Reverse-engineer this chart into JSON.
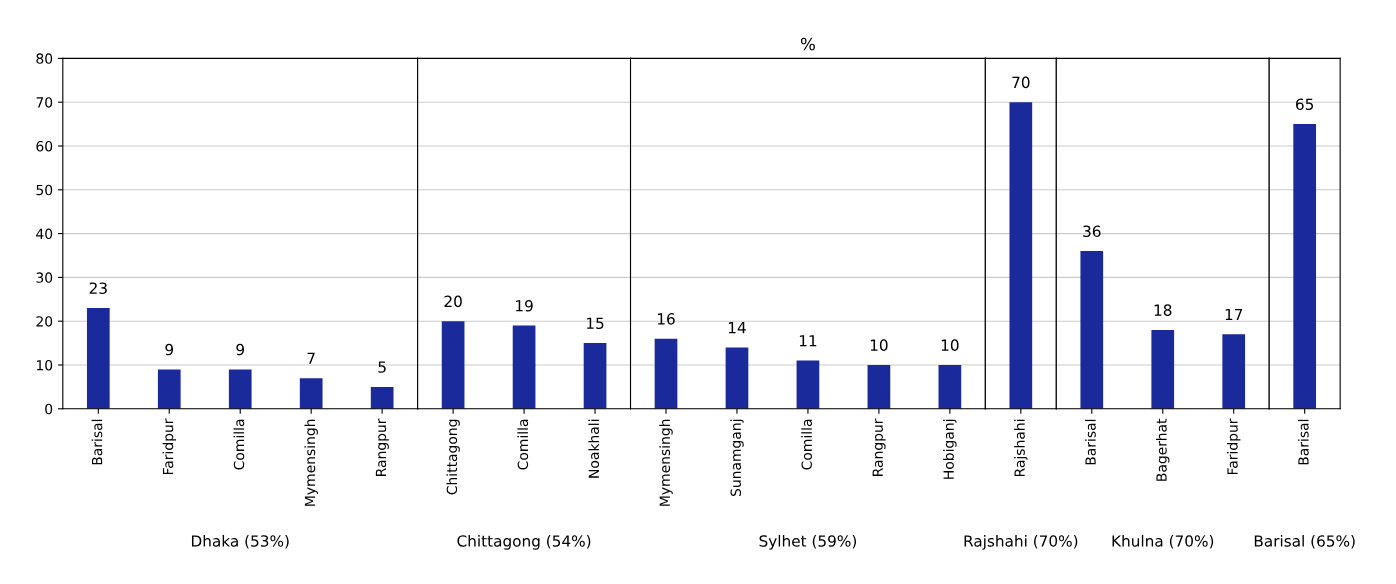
{
  "chart_data": [
    {
      "type": "bar",
      "xlabel": "Dhaka (53%)",
      "categories": [
        "Barisal",
        "Faridpur",
        "Comilla",
        "Mymensingh",
        "Rangpur"
      ],
      "values": [
        23,
        9,
        9,
        7,
        5
      ],
      "color": "#1a2a9a",
      "ylim": [
        0,
        80
      ],
      "yticks": [
        0,
        10,
        20,
        30,
        40,
        50,
        60,
        70,
        80
      ],
      "grid": "y",
      "data_labels": true
    },
    {
      "type": "bar",
      "xlabel": "Chittagong (54%)",
      "categories": [
        "Chittagong",
        "Comilla",
        "Noakhali"
      ],
      "values": [
        20,
        19,
        15
      ],
      "color": "#1a2a9a",
      "ylim": [
        0,
        80
      ],
      "yticks": [
        0,
        10,
        20,
        30,
        40,
        50,
        60,
        70,
        80
      ],
      "grid": "y",
      "data_labels": true,
      "tick_labels": "x"
    },
    {
      "type": "bar",
      "title": "%",
      "xlabel": "Sylhet (59%)",
      "categories": [
        "Mymensingh",
        "Sunamganj",
        "Comilla",
        "Rangpur",
        "Hobiganj"
      ],
      "values": [
        16,
        14,
        11,
        10,
        10
      ],
      "color": "#1a2a9a",
      "ylim": [
        0,
        80
      ],
      "yticks": [
        0,
        10,
        20,
        30,
        40,
        50,
        60,
        70,
        80
      ],
      "grid": "y",
      "data_labels": true,
      "tick_labels": "x"
    },
    {
      "type": "bar",
      "xlabel": "Rajshahi (70%)",
      "categories": [
        "Rajshahi"
      ],
      "values": [
        70
      ],
      "color": "#1a2a9a",
      "ylim": [
        0,
        80
      ],
      "yticks": [
        0,
        10,
        20,
        30,
        40,
        50,
        60,
        70,
        80
      ],
      "grid": "y",
      "data_labels": true,
      "tick_labels": "x"
    },
    {
      "type": "bar",
      "xlabel": "Khulna (70%)",
      "categories": [
        "Barisal",
        "Bagerhat",
        "Faridpur"
      ],
      "values": [
        36,
        18,
        17
      ],
      "color": "#1a2a9a",
      "ylim": [
        0,
        80
      ],
      "yticks": [
        0,
        10,
        20,
        30,
        40,
        50,
        60,
        70,
        80
      ],
      "grid": "y",
      "data_labels": true,
      "tick_labels": "x"
    },
    {
      "type": "bar",
      "xlabel": "Barisal (65%)",
      "categories": [
        "Barisal"
      ],
      "values": [
        65
      ],
      "color": "#1a2a9a",
      "ylim": [
        0,
        80
      ],
      "yticks": [
        0,
        10,
        20,
        30,
        40,
        50,
        60,
        70,
        80
      ],
      "grid": "y",
      "data_labels": true,
      "tick_labels": "x"
    }
  ]
}
